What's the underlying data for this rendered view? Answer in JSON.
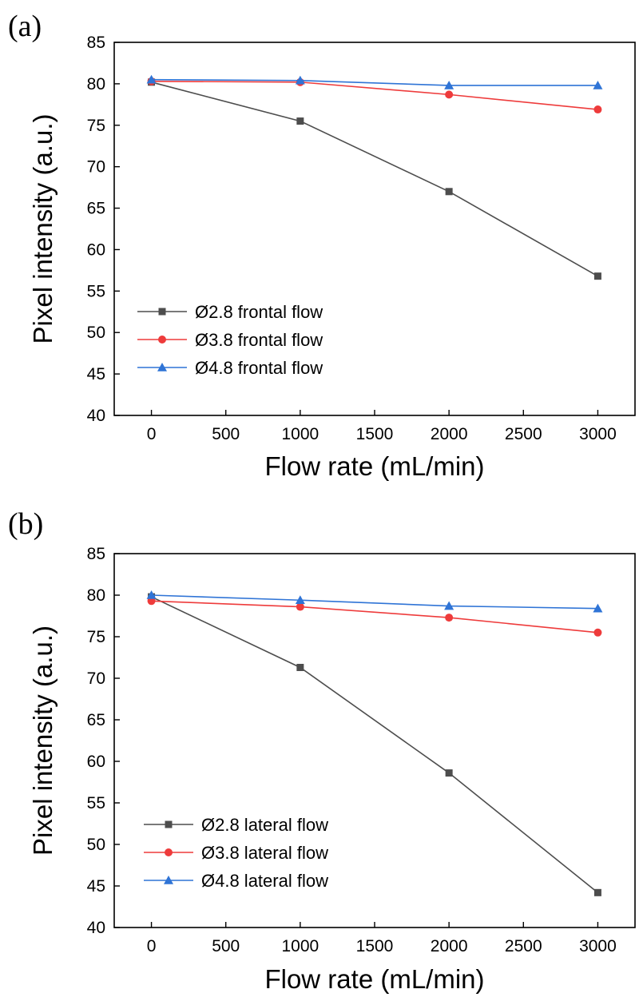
{
  "chart_data": [
    {
      "type": "line",
      "panel_label": "(a)",
      "xlabel": "Flow rate (mL/min)",
      "ylabel": "Pixel intensity (a.u.)",
      "x": [
        0,
        1000,
        2000,
        3000
      ],
      "xticks": [
        "0",
        "500",
        "1000",
        "1500",
        "2000",
        "2500",
        "3000"
      ],
      "xtick_values": [
        0,
        500,
        1000,
        1500,
        2000,
        2500,
        3000
      ],
      "yticks": [
        "40",
        "45",
        "50",
        "55",
        "60",
        "65",
        "70",
        "75",
        "80",
        "85"
      ],
      "ytick_values": [
        40,
        45,
        50,
        55,
        60,
        65,
        70,
        75,
        80,
        85
      ],
      "xlim": [
        -250,
        3250
      ],
      "ylim": [
        40,
        85
      ],
      "grid": false,
      "legend_position": "bottom-left",
      "series": [
        {
          "name": "Ø2.8 frontal flow",
          "values": [
            80.2,
            75.5,
            67.0,
            56.8
          ],
          "color": "#4d4d4d",
          "marker": "square"
        },
        {
          "name": "Ø3.8 frontal flow",
          "values": [
            80.3,
            80.2,
            78.7,
            76.9
          ],
          "color": "#ee3b3b",
          "marker": "circle"
        },
        {
          "name": "Ø4.8 frontal flow",
          "values": [
            80.5,
            80.4,
            79.8,
            79.8
          ],
          "color": "#2f74d6",
          "marker": "triangle"
        }
      ]
    },
    {
      "type": "line",
      "panel_label": "(b)",
      "xlabel": "Flow rate (mL/min)",
      "ylabel": "Pixel intensity (a.u.)",
      "x": [
        0,
        1000,
        2000,
        3000
      ],
      "xticks": [
        "0",
        "500",
        "1000",
        "1500",
        "2000",
        "2500",
        "3000"
      ],
      "xtick_values": [
        0,
        500,
        1000,
        1500,
        2000,
        2500,
        3000
      ],
      "yticks": [
        "40",
        "45",
        "50",
        "55",
        "60",
        "65",
        "70",
        "75",
        "80",
        "85"
      ],
      "ytick_values": [
        40,
        45,
        50,
        55,
        60,
        65,
        70,
        75,
        80,
        85
      ],
      "xlim": [
        -250,
        3250
      ],
      "ylim": [
        40,
        85
      ],
      "grid": false,
      "legend_position": "bottom-left",
      "series": [
        {
          "name": "Ø2.8 lateral flow",
          "values": [
            79.8,
            71.3,
            58.6,
            44.2
          ],
          "color": "#4d4d4d",
          "marker": "square"
        },
        {
          "name": "Ø3.8 lateral flow",
          "values": [
            79.3,
            78.6,
            77.3,
            75.5
          ],
          "color": "#ee3b3b",
          "marker": "circle"
        },
        {
          "name": "Ø4.8 lateral flow",
          "values": [
            80.0,
            79.4,
            78.7,
            78.4
          ],
          "color": "#2f74d6",
          "marker": "triangle"
        }
      ]
    }
  ]
}
